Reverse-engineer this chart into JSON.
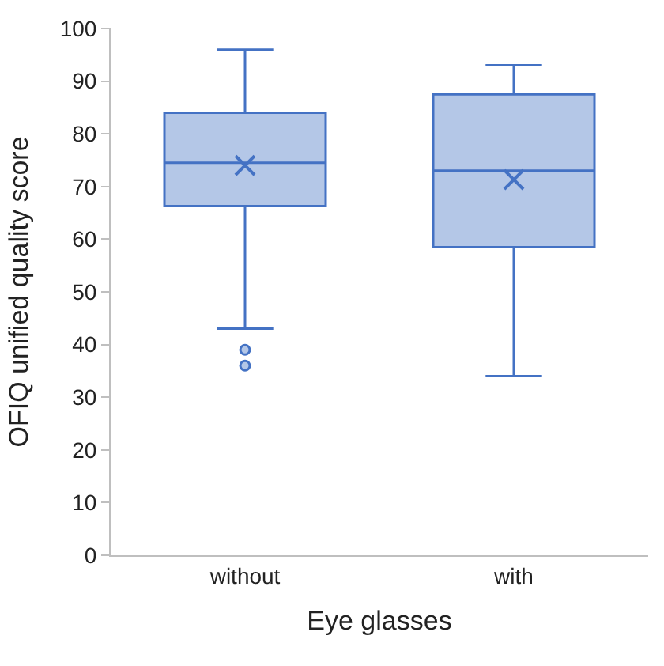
{
  "chart_data": {
    "type": "box",
    "xlabel": "Eye glasses",
    "ylabel": "OFIQ unified quality score",
    "categories": [
      "without",
      "with"
    ],
    "color": "#4472c4",
    "boxes": [
      {
        "low": 43,
        "q1": 66.3,
        "median": 74.5,
        "q3": 84,
        "high": 96,
        "mean": 74,
        "outliers": [
          39,
          36
        ]
      },
      {
        "low": 34,
        "q1": 58.5,
        "median": 73,
        "q3": 87.5,
        "high": 93,
        "mean": 71.3
      }
    ],
    "ylim": [
      0,
      100
    ],
    "yticks": [
      0,
      10,
      20,
      30,
      40,
      50,
      60,
      70,
      80,
      90,
      100
    ]
  }
}
